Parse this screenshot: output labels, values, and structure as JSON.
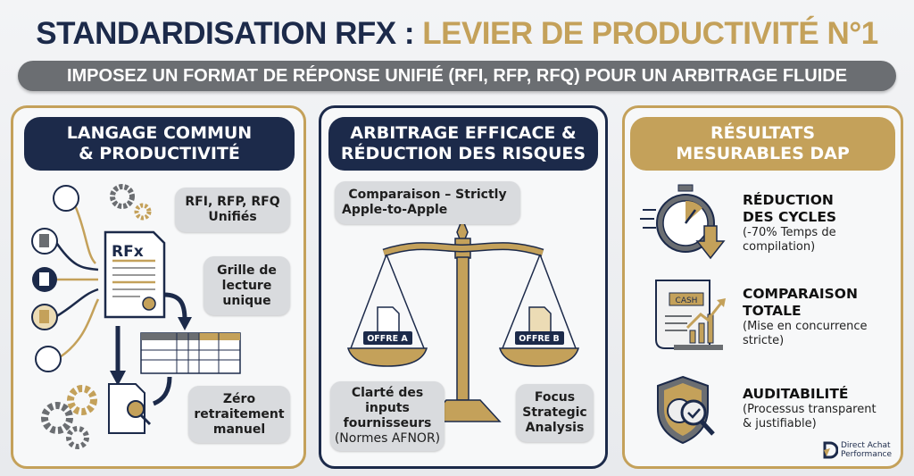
{
  "header": {
    "title_part1": "STANDARDISATION RFX : ",
    "title_part2": "LEVIER DE PRODUCTIVITÉ N°1",
    "subtitle": "IMPOSEZ UN FORMAT DE RÉPONSE UNIFIÉ (RFI, RFP, RFQ) POUR UN ARBITRAGE FLUIDE"
  },
  "colors": {
    "navy": "#1c2a4a",
    "gold": "#c4a15a",
    "gray": "#6b6e72"
  },
  "panel1": {
    "title_l1": "LANGAGE COMMUN",
    "title_l2": "& PRODUCTIVITÉ",
    "doc_label": "RFx",
    "bubble1_l1": "RFI, RFP, RFQ",
    "bubble1_l2": "Unifiés",
    "bubble2_l1": "Grille de",
    "bubble2_l2": "lecture",
    "bubble2_l3": "unique",
    "bubble3_l1": "Zéro",
    "bubble3_l2": "retraitement",
    "bubble3_l3": "manuel"
  },
  "panel2": {
    "title_l1": "ARBITRAGE EFFICACE &",
    "title_l2": "RÉDUCTION DES RISQUES",
    "bubble_top_l1": "Comparaison – Strictly",
    "bubble_top_l2": "Apple-to-Apple",
    "offre_a": "OFFRE A",
    "offre_b": "OFFRE B",
    "bubble_left_l1": "Clarté des",
    "bubble_left_l2": "inputs",
    "bubble_left_l3": "fournisseurs",
    "bubble_left_l4": "(Normes AFNOR)",
    "bubble_right_l1": "Focus",
    "bubble_right_l2": "Strategic",
    "bubble_right_l3": "Analysis"
  },
  "panel3": {
    "title_l1": "RÉSULTATS",
    "title_l2": "MESURABLES DAP",
    "items": [
      {
        "icon": "stopwatch-icon",
        "t1": "RÉDUCTION",
        "t2": "DES CYCLES",
        "d1": "(-70% Temps de",
        "d2": "compilation)"
      },
      {
        "icon": "cash-chart-icon",
        "cash": "CASH",
        "t1": "COMPARAISON",
        "t2": "TOTALE",
        "d1": "(Mise en concurrence",
        "d2": "stricte)"
      },
      {
        "icon": "shield-check-icon",
        "t1": "AUDITABILITÉ",
        "t2": "",
        "d1": "(Processus transparent",
        "d2": "& justifiable)"
      }
    ]
  },
  "logo": {
    "l1": "Direct Achat",
    "l2": "Performance"
  }
}
